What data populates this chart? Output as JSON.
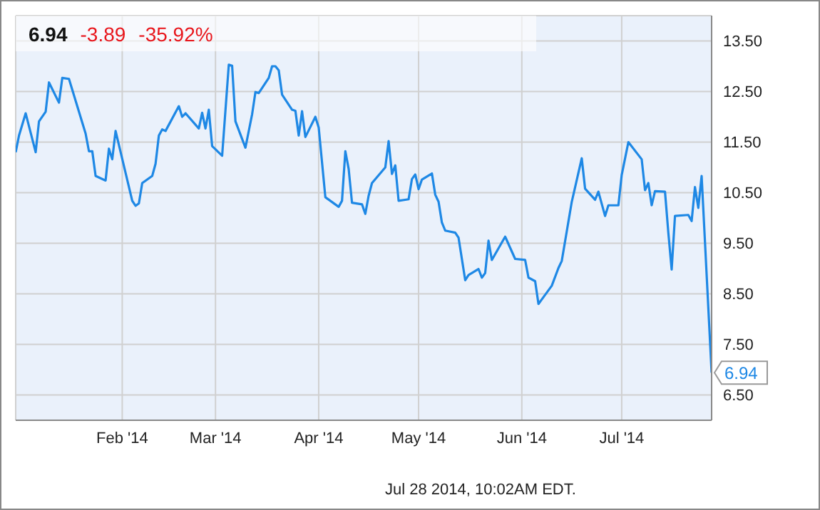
{
  "chart_data": {
    "type": "line",
    "title": "6.94",
    "annotations": [
      "-3.89",
      "-35.92%",
      "Jul 28 2014, 10:02AM EDT."
    ],
    "x": [
      "2013-12-31",
      "2014-01-01",
      "2014-01-03",
      "2014-01-06",
      "2014-01-07",
      "2014-01-09",
      "2014-01-10",
      "2014-01-13",
      "2014-01-14",
      "2014-01-16",
      "2014-01-21",
      "2014-01-22",
      "2014-01-23",
      "2014-01-24",
      "2014-01-27",
      "2014-01-28",
      "2014-01-29",
      "2014-01-30",
      "2014-02-04",
      "2014-02-05",
      "2014-02-06",
      "2014-02-07",
      "2014-02-10",
      "2014-02-11",
      "2014-02-12",
      "2014-02-13",
      "2014-02-14",
      "2014-02-18",
      "2014-02-19",
      "2014-02-20",
      "2014-02-24",
      "2014-02-25",
      "2014-02-26",
      "2014-02-27",
      "2014-02-28",
      "2014-03-03",
      "2014-03-05",
      "2014-03-06",
      "2014-03-07",
      "2014-03-10",
      "2014-03-12",
      "2014-03-13",
      "2014-03-14",
      "2014-03-17",
      "2014-03-18",
      "2014-03-19",
      "2014-03-20",
      "2014-03-21",
      "2014-03-24",
      "2014-03-25",
      "2014-03-26",
      "2014-03-27",
      "2014-03-28",
      "2014-03-31",
      "2014-04-01",
      "2014-04-03",
      "2014-04-07",
      "2014-04-08",
      "2014-04-09",
      "2014-04-10",
      "2014-04-11",
      "2014-04-14",
      "2014-04-15",
      "2014-04-16",
      "2014-04-17",
      "2014-04-21",
      "2014-04-22",
      "2014-04-23",
      "2014-04-24",
      "2014-04-25",
      "2014-04-28",
      "2014-04-29",
      "2014-04-30",
      "2014-05-01",
      "2014-05-02",
      "2014-05-05",
      "2014-05-06",
      "2014-05-07",
      "2014-05-08",
      "2014-05-09",
      "2014-05-12",
      "2014-05-13",
      "2014-05-15",
      "2014-05-16",
      "2014-05-19",
      "2014-05-20",
      "2014-05-21",
      "2014-05-22",
      "2014-05-23",
      "2014-05-27",
      "2014-05-30",
      "2014-06-02",
      "2014-06-03",
      "2014-06-05",
      "2014-06-06",
      "2014-06-10",
      "2014-06-12",
      "2014-06-13",
      "2014-06-16",
      "2014-06-19",
      "2014-06-20",
      "2014-06-23",
      "2014-06-24",
      "2014-06-26",
      "2014-06-27",
      "2014-06-30",
      "2014-07-01",
      "2014-07-03",
      "2014-07-07",
      "2014-07-08",
      "2014-07-09",
      "2014-07-10",
      "2014-07-11",
      "2014-07-14",
      "2014-07-15",
      "2014-07-16",
      "2014-07-17",
      "2014-07-21",
      "2014-07-22",
      "2014-07-23",
      "2014-07-24",
      "2014-07-25",
      "2014-07-28"
    ],
    "series": [
      {
        "color": "#1e88e5",
        "values": [
          11.3,
          11.63,
          12.07,
          11.3,
          11.91,
          12.1,
          12.68,
          12.28,
          12.77,
          12.75,
          11.67,
          11.32,
          11.32,
          10.83,
          10.74,
          11.37,
          11.16,
          11.72,
          10.34,
          10.24,
          10.29,
          10.69,
          10.83,
          11.07,
          11.63,
          11.75,
          11.72,
          12.21,
          12.0,
          12.07,
          11.77,
          12.08,
          11.77,
          12.14,
          11.42,
          11.23,
          13.03,
          13.01,
          11.91,
          11.39,
          12.05,
          12.49,
          12.47,
          12.77,
          13.0,
          13.0,
          12.92,
          12.44,
          12.14,
          12.12,
          11.63,
          12.11,
          11.6,
          12.0,
          11.79,
          10.41,
          10.22,
          10.34,
          11.32,
          10.97,
          10.3,
          10.27,
          10.08,
          10.44,
          10.69,
          11.0,
          11.52,
          10.87,
          11.04,
          10.34,
          10.37,
          10.77,
          10.86,
          10.57,
          10.76,
          10.88,
          10.46,
          10.32,
          9.91,
          9.75,
          9.71,
          9.61,
          8.77,
          8.87,
          8.99,
          8.82,
          8.91,
          9.55,
          9.17,
          9.63,
          9.19,
          9.17,
          8.82,
          8.75,
          8.3,
          8.66,
          9.01,
          9.15,
          10.32,
          11.18,
          10.58,
          10.36,
          10.52,
          10.04,
          10.25,
          10.25,
          10.85,
          11.5,
          11.16,
          10.55,
          10.69,
          10.25,
          10.53,
          10.52,
          9.71,
          8.98,
          10.04,
          10.06,
          9.94,
          10.61,
          10.2,
          10.83,
          6.94
        ],
        "value_labels": [
          null,
          null,
          null,
          null,
          null,
          null,
          null,
          null,
          null,
          null,
          null,
          null,
          null,
          null,
          null,
          null,
          null,
          null,
          null,
          null,
          null,
          null,
          null,
          null,
          null,
          null,
          null,
          null,
          null,
          null,
          null,
          null,
          null,
          null,
          null,
          null,
          null,
          null,
          null,
          null,
          null,
          null,
          null,
          null,
          null,
          null,
          null,
          null,
          null,
          null,
          null,
          null,
          null,
          null,
          null,
          null,
          null,
          null,
          null,
          null,
          null,
          null,
          null,
          null,
          null,
          null,
          null,
          null,
          null,
          null,
          null,
          null,
          null,
          null,
          null,
          null,
          null,
          null,
          null,
          null,
          null,
          null,
          null,
          null,
          null,
          null,
          null,
          null,
          null,
          null,
          null,
          null,
          null,
          null,
          null,
          null,
          null,
          null,
          null,
          null,
          null,
          null,
          null,
          null,
          null,
          null,
          null,
          null,
          null,
          null,
          null,
          null,
          null,
          null,
          null,
          null,
          null,
          null,
          null,
          null,
          null,
          null,
          "6.94"
        ]
      }
    ],
    "xlim": [
      "2013-12-31",
      "2014-07-28"
    ],
    "xticks": [
      {
        "value": "2014-02-01",
        "label": "Feb '14"
      },
      {
        "value": "2014-03-01",
        "label": "Mar '14"
      },
      {
        "value": "2014-04-01",
        "label": "Apr '14"
      },
      {
        "value": "2014-05-01",
        "label": "May '14"
      },
      {
        "value": "2014-06-01",
        "label": "Jun '14"
      },
      {
        "value": "2014-07-01",
        "label": "Jul '14"
      }
    ],
    "ylim": [
      6.0,
      14.0
    ],
    "yticks": [
      {
        "value": 6.5,
        "label": "6.50"
      },
      {
        "value": 7.5,
        "label": "7.50"
      },
      {
        "value": 8.5,
        "label": "8.50"
      },
      {
        "value": 9.5,
        "label": "9.50"
      },
      {
        "value": 10.5,
        "label": "10.50"
      },
      {
        "value": 11.5,
        "label": "11.50"
      },
      {
        "value": 12.5,
        "label": "12.50"
      },
      {
        "value": 13.5,
        "label": "13.50"
      }
    ],
    "grid": true
  }
}
